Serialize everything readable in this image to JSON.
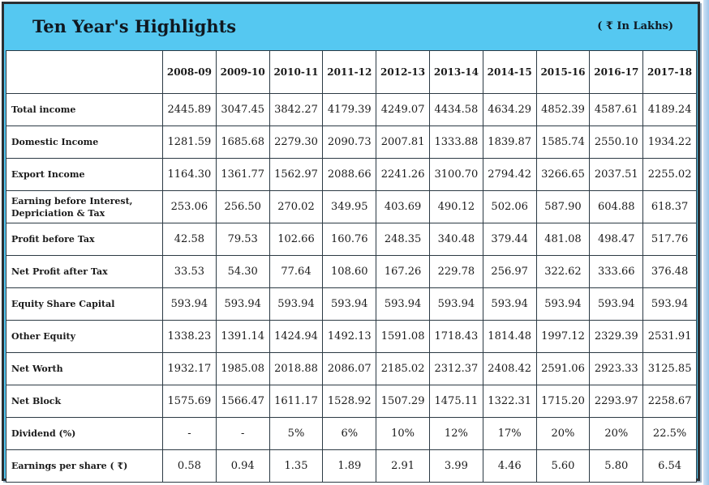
{
  "title": "Ten Year's Highlights",
  "unit": "( ₹ In Lakhs)",
  "years": [
    "2008-09",
    "2009-10",
    "2010-11",
    "2011-12",
    "2012-13",
    "2013-14",
    "2014-15",
    "2015-16",
    "2016-17",
    "2017-18"
  ],
  "rows": [
    {
      "label": "Total income",
      "values": [
        "2445.89",
        "3047.45",
        "3842.27",
        "4179.39",
        "4249.07",
        "4434.58",
        "4634.29",
        "4852.39",
        "4587.61",
        "4189.24"
      ]
    },
    {
      "label": "Domestic Income",
      "values": [
        "1281.59",
        "1685.68",
        "2279.30",
        "2090.73",
        "2007.81",
        "1333.88",
        "1839.87",
        "1585.74",
        "2550.10",
        "1934.22"
      ]
    },
    {
      "label": "Export Income",
      "values": [
        "1164.30",
        "1361.77",
        "1562.97",
        "2088.66",
        "2241.26",
        "3100.70",
        "2794.42",
        "3266.65",
        "2037.51",
        "2255.02"
      ]
    },
    {
      "label": "Earning before Interest, Depriciation & Tax",
      "values": [
        "253.06",
        "256.50",
        "270.02",
        "349.95",
        "403.69",
        "490.12",
        "502.06",
        "587.90",
        "604.88",
        "618.37"
      ]
    },
    {
      "label": "Profit before Tax",
      "values": [
        "42.58",
        "79.53",
        "102.66",
        "160.76",
        "248.35",
        "340.48",
        "379.44",
        "481.08",
        "498.47",
        "517.76"
      ]
    },
    {
      "label": "Net Profit after Tax",
      "values": [
        "33.53",
        "54.30",
        "77.64",
        "108.60",
        "167.26",
        "229.78",
        "256.97",
        "322.62",
        "333.66",
        "376.48"
      ]
    },
    {
      "label": "Equity Share Capital",
      "values": [
        "593.94",
        "593.94",
        "593.94",
        "593.94",
        "593.94",
        "593.94",
        "593.94",
        "593.94",
        "593.94",
        "593.94"
      ]
    },
    {
      "label": "Other Equity",
      "values": [
        "1338.23",
        "1391.14",
        "1424.94",
        "1492.13",
        "1591.08",
        "1718.43",
        "1814.48",
        "1997.12",
        "2329.39",
        "2531.91"
      ]
    },
    {
      "label": "Net Worth",
      "values": [
        "1932.17",
        "1985.08",
        "2018.88",
        "2086.07",
        "2185.02",
        "2312.37",
        "2408.42",
        "2591.06",
        "2923.33",
        "3125.85"
      ]
    },
    {
      "label": "Net Block",
      "values": [
        "1575.69",
        "1566.47",
        "1611.17",
        "1528.92",
        "1507.29",
        "1475.11",
        "1322.31",
        "1715.20",
        "2293.97",
        "2258.67"
      ]
    },
    {
      "label": "Dividend (%)",
      "values": [
        "-",
        "-",
        "5%",
        "6%",
        "10%",
        "12%",
        "17%",
        "20%",
        "20%",
        "22.5%"
      ]
    },
    {
      "label": "Earnings per share ( ₹)",
      "values": [
        "0.58",
        "0.94",
        "1.35",
        "1.89",
        "2.91",
        "3.99",
        "4.46",
        "5.60",
        "5.80",
        "6.54"
      ]
    }
  ]
}
